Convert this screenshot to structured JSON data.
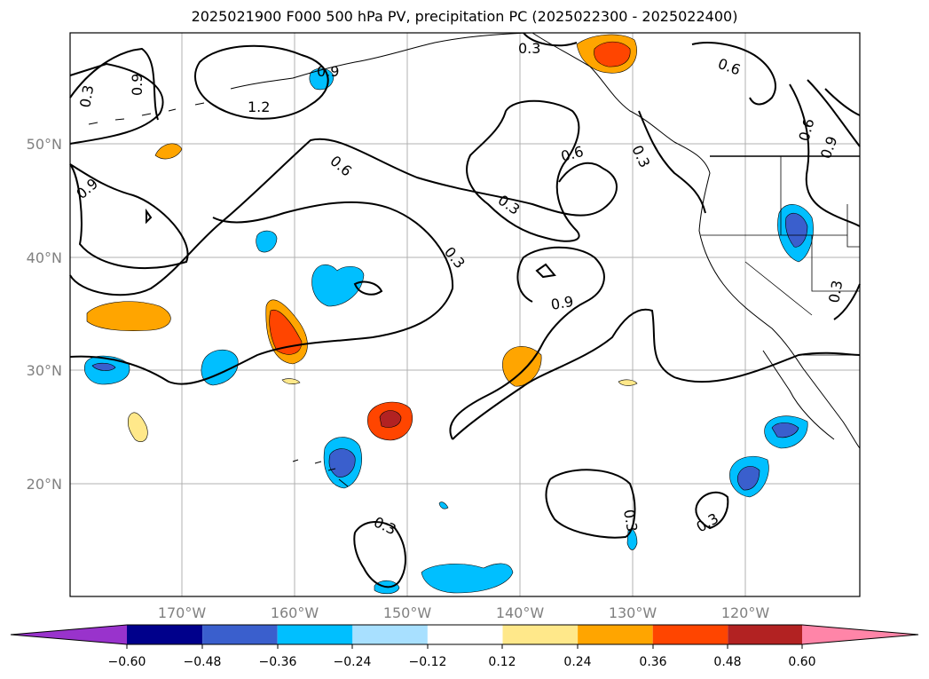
{
  "title": "2025021900 F000 500 hPa PV, precipitation PC (2025022300 - 2025022400)",
  "map": {
    "lat_labels": [
      "50°N",
      "40°N",
      "30°N",
      "20°N"
    ],
    "lon_labels": [
      "170°W",
      "160°W",
      "150°W",
      "140°W",
      "130°W",
      "120°W"
    ],
    "gridline_color": "#b0b0b0"
  },
  "contour_labels": [
    "0.3",
    "0.6",
    "0.9",
    "1.2"
  ],
  "colorbar": {
    "ticks": [
      "−0.60",
      "−0.48",
      "−0.36",
      "−0.24",
      "−0.12",
      "0.12",
      "0.24",
      "0.36",
      "0.48",
      "0.60"
    ],
    "colors": [
      "#9933cc",
      "#00008b",
      "#3a5fcd",
      "#00bfff",
      "#a8e0ff",
      "#ffffff",
      "#ffe88a",
      "#ffa500",
      "#ff4500",
      "#b22222",
      "#ff85a8"
    ]
  }
}
